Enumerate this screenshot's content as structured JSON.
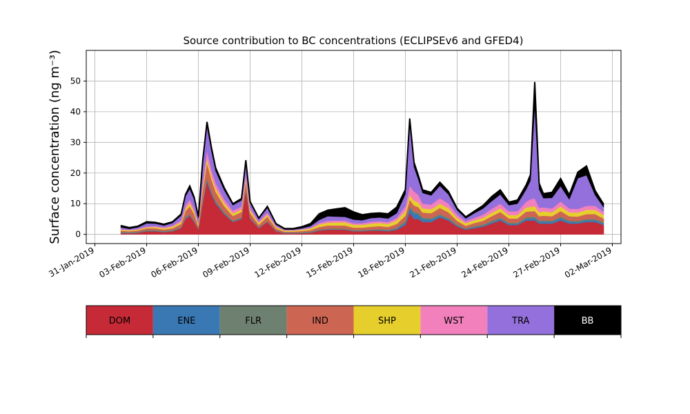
{
  "chart_data": {
    "type": "area",
    "stacked": true,
    "title": "Source contribution to BC concentrations (ECLIPSEv6 and GFED4)",
    "ylabel": "Surface concentration (ng m⁻³)",
    "xlabel": "",
    "grid": true,
    "xlim": [
      "2019-01-30T12:00",
      "2019-03-02T12:00"
    ],
    "ylim": [
      -3,
      60
    ],
    "x_tick_labels": [
      "31-Jan-2019",
      "03-Feb-2019",
      "06-Feb-2019",
      "09-Feb-2019",
      "12-Feb-2019",
      "15-Feb-2019",
      "18-Feb-2019",
      "21-Feb-2019",
      "24-Feb-2019",
      "27-Feb-2019",
      "02-Mar-2019"
    ],
    "x_tick_dates": [
      "2019-01-31",
      "2019-02-03",
      "2019-02-06",
      "2019-02-09",
      "2019-02-12",
      "2019-02-15",
      "2019-02-18",
      "2019-02-21",
      "2019-02-24",
      "2019-02-27",
      "2019-03-02"
    ],
    "y_ticks": [
      0,
      10,
      20,
      30,
      40,
      50
    ],
    "x": [
      "2019-02-01T12:00",
      "2019-02-02T00:00",
      "2019-02-02T12:00",
      "2019-02-03T00:00",
      "2019-02-03T12:00",
      "2019-02-04T00:00",
      "2019-02-04T12:00",
      "2019-02-05T00:00",
      "2019-02-05T06:00",
      "2019-02-05T12:00",
      "2019-02-05T18:00",
      "2019-02-06T00:00",
      "2019-02-06T06:00",
      "2019-02-06T12:00",
      "2019-02-06T18:00",
      "2019-02-07T00:00",
      "2019-02-07T12:00",
      "2019-02-08T00:00",
      "2019-02-08T12:00",
      "2019-02-08T18:00",
      "2019-02-09T00:00",
      "2019-02-09T12:00",
      "2019-02-10T00:00",
      "2019-02-10T12:00",
      "2019-02-11T00:00",
      "2019-02-11T12:00",
      "2019-02-12T00:00",
      "2019-02-12T12:00",
      "2019-02-13T00:00",
      "2019-02-13T12:00",
      "2019-02-14T00:00",
      "2019-02-14T12:00",
      "2019-02-15T00:00",
      "2019-02-15T12:00",
      "2019-02-16T00:00",
      "2019-02-16T12:00",
      "2019-02-17T00:00",
      "2019-02-17T12:00",
      "2019-02-18T00:00",
      "2019-02-18T06:00",
      "2019-02-18T12:00",
      "2019-02-18T18:00",
      "2019-02-19T00:00",
      "2019-02-19T12:00",
      "2019-02-20T00:00",
      "2019-02-20T12:00",
      "2019-02-21T00:00",
      "2019-02-21T12:00",
      "2019-02-22T00:00",
      "2019-02-22T12:00",
      "2019-02-23T00:00",
      "2019-02-23T12:00",
      "2019-02-24T00:00",
      "2019-02-24T12:00",
      "2019-02-25T00:00",
      "2019-02-25T06:00",
      "2019-02-25T12:00",
      "2019-02-25T18:00",
      "2019-02-26T00:00",
      "2019-02-26T12:00",
      "2019-02-27T00:00",
      "2019-02-27T12:00",
      "2019-02-28T00:00",
      "2019-02-28T12:00",
      "2019-03-01T00:00",
      "2019-03-01T12:00"
    ],
    "series": [
      {
        "name": "DOM",
        "color": "#c62a37",
        "values": [
          0.4,
          0.3,
          0.5,
          1.0,
          1.0,
          0.7,
          1.0,
          2.0,
          5.0,
          6.0,
          4.0,
          1.5,
          10.0,
          17.0,
          13.0,
          10.0,
          6.5,
          4.0,
          5.0,
          14.0,
          5.0,
          2.0,
          4.0,
          1.0,
          0.3,
          0.3,
          0.4,
          0.5,
          1.2,
          1.5,
          1.5,
          1.5,
          1.0,
          1.0,
          1.2,
          1.2,
          1.0,
          1.5,
          3.0,
          7.0,
          5.0,
          5.0,
          4.0,
          4.0,
          5.5,
          4.5,
          2.5,
          1.5,
          2.0,
          2.5,
          3.5,
          4.5,
          3.0,
          3.0,
          4.5,
          4.5,
          4.5,
          3.5,
          3.5,
          3.5,
          4.5,
          3.5,
          3.5,
          4.0,
          4.0,
          3.0
        ]
      },
      {
        "name": "ENE",
        "color": "#3a78b3",
        "values": [
          0.1,
          0.1,
          0.1,
          0.1,
          0.1,
          0.1,
          0.1,
          0.1,
          0.2,
          0.2,
          0.2,
          0.1,
          0.4,
          0.6,
          0.5,
          0.4,
          0.3,
          0.2,
          0.2,
          0.4,
          0.2,
          0.1,
          0.1,
          0.1,
          0.1,
          0.1,
          0.1,
          0.1,
          0.1,
          0.1,
          0.1,
          0.1,
          0.1,
          0.1,
          0.1,
          0.2,
          0.2,
          0.3,
          0.8,
          1.5,
          1.8,
          1.5,
          1.0,
          0.8,
          0.6,
          0.4,
          0.3,
          0.2,
          0.3,
          0.3,
          0.4,
          0.5,
          0.4,
          0.4,
          0.6,
          0.7,
          0.8,
          0.6,
          0.7,
          0.6,
          0.8,
          0.6,
          0.5,
          0.6,
          0.6,
          0.5
        ]
      },
      {
        "name": "FLR",
        "color": "#6e8070",
        "values": [
          0.3,
          0.3,
          0.3,
          0.3,
          0.3,
          0.3,
          0.3,
          0.3,
          0.4,
          0.4,
          0.4,
          0.3,
          0.5,
          0.6,
          0.5,
          0.5,
          0.4,
          0.3,
          0.3,
          0.4,
          0.3,
          0.2,
          0.2,
          0.2,
          0.2,
          0.2,
          0.2,
          0.3,
          0.3,
          0.3,
          0.3,
          0.3,
          0.3,
          0.3,
          0.3,
          0.3,
          0.3,
          0.4,
          0.5,
          0.6,
          0.6,
          0.6,
          0.5,
          0.5,
          0.5,
          0.5,
          0.4,
          0.3,
          0.4,
          0.4,
          0.5,
          0.5,
          0.4,
          0.4,
          0.5,
          0.5,
          0.5,
          0.4,
          0.4,
          0.4,
          0.5,
          0.4,
          0.4,
          0.4,
          0.4,
          0.4
        ]
      },
      {
        "name": "IND",
        "color": "#cd6553",
        "values": [
          0.4,
          0.3,
          0.4,
          0.6,
          0.6,
          0.5,
          0.6,
          1.0,
          2.0,
          2.5,
          2.0,
          0.8,
          3.5,
          5.0,
          4.0,
          3.0,
          2.0,
          1.5,
          1.8,
          2.5,
          1.5,
          0.8,
          1.5,
          0.6,
          0.3,
          0.3,
          0.4,
          0.5,
          0.8,
          1.0,
          1.0,
          1.0,
          0.8,
          0.8,
          0.9,
          1.0,
          0.9,
          1.2,
          1.8,
          2.2,
          2.0,
          1.8,
          1.6,
          1.6,
          2.0,
          1.8,
          1.2,
          0.8,
          1.0,
          1.2,
          1.5,
          1.8,
          1.4,
          1.4,
          1.8,
          1.8,
          1.8,
          1.4,
          1.5,
          1.4,
          1.8,
          1.4,
          1.4,
          1.6,
          1.6,
          1.2
        ]
      },
      {
        "name": "SHP",
        "color": "#e6cf2c",
        "values": [
          0.3,
          0.3,
          0.3,
          0.3,
          0.4,
          0.4,
          0.5,
          0.6,
          0.8,
          1.0,
          0.9,
          0.6,
          1.2,
          1.5,
          1.3,
          1.2,
          1.0,
          0.8,
          0.8,
          1.0,
          0.8,
          0.6,
          0.6,
          0.5,
          0.3,
          0.3,
          0.4,
          0.5,
          0.8,
          0.9,
          1.0,
          1.0,
          0.9,
          0.9,
          1.0,
          1.0,
          1.0,
          1.2,
          1.5,
          1.5,
          1.6,
          1.5,
          1.4,
          1.3,
          1.4,
          1.3,
          1.0,
          0.8,
          0.9,
          1.0,
          1.1,
          1.2,
          1.1,
          1.1,
          1.4,
          1.5,
          1.6,
          1.3,
          1.4,
          1.3,
          1.5,
          1.3,
          1.3,
          1.4,
          1.4,
          1.2
        ]
      },
      {
        "name": "WST",
        "color": "#f280bd",
        "values": [
          0.2,
          0.2,
          0.2,
          0.3,
          0.3,
          0.3,
          0.4,
          0.6,
          1.0,
          1.2,
          1.0,
          0.5,
          1.5,
          2.5,
          2.0,
          1.6,
          1.2,
          0.9,
          1.0,
          1.6,
          0.9,
          0.5,
          0.7,
          0.3,
          0.2,
          0.2,
          0.2,
          0.3,
          0.5,
          0.6,
          0.6,
          0.6,
          0.5,
          0.5,
          0.6,
          0.6,
          0.6,
          0.8,
          1.5,
          3.0,
          3.0,
          2.5,
          1.5,
          1.5,
          1.8,
          1.5,
          1.0,
          0.6,
          0.8,
          1.0,
          1.3,
          1.5,
          1.2,
          1.2,
          1.8,
          2.5,
          2.5,
          1.5,
          1.3,
          1.2,
          1.6,
          1.2,
          1.2,
          1.3,
          1.3,
          1.0
        ]
      },
      {
        "name": "TRA",
        "color": "#9370db",
        "values": [
          0.6,
          0.3,
          0.5,
          1.0,
          0.8,
          0.6,
          0.8,
          1.5,
          3.0,
          3.5,
          3.0,
          1.5,
          6.0,
          8.0,
          6.0,
          4.0,
          3.0,
          1.8,
          2.0,
          3.0,
          1.5,
          0.8,
          1.5,
          0.5,
          0.2,
          0.2,
          0.3,
          0.5,
          1.0,
          1.5,
          1.3,
          1.2,
          1.2,
          1.0,
          1.2,
          1.2,
          1.2,
          1.5,
          4.0,
          20.0,
          8.0,
          5.0,
          3.5,
          3.0,
          4.0,
          3.0,
          1.5,
          1.0,
          1.5,
          2.0,
          2.5,
          3.0,
          2.0,
          2.5,
          4.0,
          6.0,
          30.0,
          6.0,
          3.0,
          3.5,
          5.0,
          3.0,
          10.0,
          10.0,
          3.5,
          1.5
        ]
      },
      {
        "name": "BB",
        "color": "#000000",
        "values": [
          0.6,
          0.4,
          0.4,
          0.5,
          0.4,
          0.4,
          0.4,
          0.5,
          0.6,
          1.0,
          0.7,
          0.5,
          1.0,
          1.5,
          1.2,
          1.0,
          0.8,
          0.5,
          0.6,
          1.3,
          0.5,
          0.3,
          0.5,
          0.3,
          0.3,
          0.3,
          0.5,
          0.8,
          2.0,
          2.0,
          2.5,
          3.0,
          2.5,
          1.8,
          1.5,
          1.5,
          1.5,
          2.0,
          1.5,
          2.0,
          1.5,
          1.3,
          1.0,
          1.0,
          1.2,
          1.0,
          0.6,
          0.5,
          0.7,
          1.0,
          1.5,
          1.5,
          1.0,
          1.2,
          1.5,
          2.0,
          8.0,
          2.0,
          1.5,
          1.8,
          2.5,
          1.5,
          2.0,
          3.0,
          1.5,
          1.0
        ]
      }
    ],
    "legend": {
      "placement": "bottom colorbar",
      "entries": [
        {
          "label": "DOM",
          "color": "#c62a37",
          "text_color": "#000000"
        },
        {
          "label": "ENE",
          "color": "#3a78b3",
          "text_color": "#000000"
        },
        {
          "label": "FLR",
          "color": "#6e8070",
          "text_color": "#000000"
        },
        {
          "label": "IND",
          "color": "#cd6553",
          "text_color": "#000000"
        },
        {
          "label": "SHP",
          "color": "#e6cf2c",
          "text_color": "#000000"
        },
        {
          "label": "WST",
          "color": "#f280bd",
          "text_color": "#000000"
        },
        {
          "label": "TRA",
          "color": "#9370db",
          "text_color": "#000000"
        },
        {
          "label": "BB",
          "color": "#000000",
          "text_color": "#ffffff"
        }
      ]
    }
  }
}
